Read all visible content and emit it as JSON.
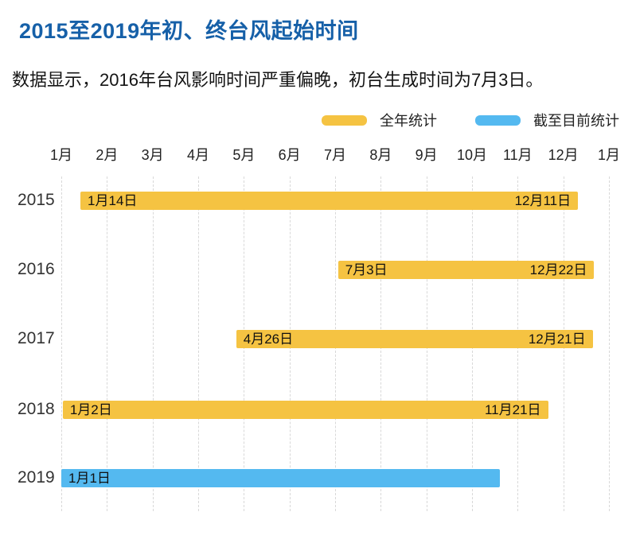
{
  "colors": {
    "title_blue": "#1660a8",
    "full_year_yellow": "#f5c342",
    "to_date_blue": "#54b9f0",
    "gridline_gray": "#d8d8d8",
    "text_dark": "#141414"
  },
  "chart_data": {
    "type": "bar",
    "variant": "horizontal_range_timeline",
    "title": "2015至2019年初、终台风起始时间",
    "subtitle": "数据显示，2016年台风影响时间严重偏晚，初台生成时间为7月3日。",
    "legend": [
      {
        "label": "全年统计",
        "color": "#f5c342"
      },
      {
        "label": "截至目前统计",
        "color": "#54b9f0"
      }
    ],
    "x_axis": {
      "tick_labels": [
        "1月",
        "2月",
        "3月",
        "4月",
        "5月",
        "6月",
        "7月",
        "8月",
        "9月",
        "10月",
        "11月",
        "12月",
        "1月"
      ],
      "grid": "dashed-vertical",
      "range": "January to next January"
    },
    "y_axis": {
      "categories": [
        "2015",
        "2016",
        "2017",
        "2018",
        "2019"
      ]
    },
    "rows": [
      {
        "year": "2015",
        "series": "全年统计",
        "color": "#f5c342",
        "start": {
          "month": 1,
          "day": 14,
          "label": "1月14日"
        },
        "end": {
          "month": 12,
          "day": 11,
          "label": "12月11日"
        }
      },
      {
        "year": "2016",
        "series": "全年统计",
        "color": "#f5c342",
        "start": {
          "month": 7,
          "day": 3,
          "label": "7月3日"
        },
        "end": {
          "month": 12,
          "day": 22,
          "label": "12月22日"
        }
      },
      {
        "year": "2017",
        "series": "全年统计",
        "color": "#f5c342",
        "start": {
          "month": 4,
          "day": 26,
          "label": "4月26日"
        },
        "end": {
          "month": 12,
          "day": 21,
          "label": "12月21日"
        }
      },
      {
        "year": "2018",
        "series": "全年统计",
        "color": "#f5c342",
        "start": {
          "month": 1,
          "day": 2,
          "label": "1月2日"
        },
        "end": {
          "month": 11,
          "day": 21,
          "label": "11月21日"
        }
      },
      {
        "year": "2019",
        "series": "截至目前统计",
        "color": "#54b9f0",
        "start": {
          "month": 1,
          "day": 1,
          "label": "1月1日"
        },
        "end": {
          "month": 10,
          "day": 20,
          "label": ""
        }
      }
    ]
  }
}
